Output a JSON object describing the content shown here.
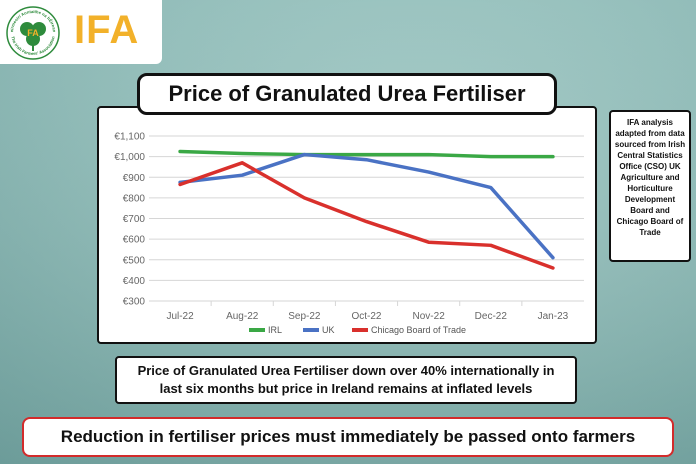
{
  "logo": {
    "text": "IFA",
    "ring_top": "Feirmeoirí Aontaithe na hÉireann",
    "ring_bottom": "The Irish Farmers' Association",
    "badge_letters": "FA"
  },
  "title": "Price of Granulated Urea Fertiliser",
  "source_note": "IFA analysis adapted from data sourced from Irish Central Statistics Office (CSO) UK Agriculture and Horticulture Development Board and Chicago Board of Trade",
  "caption": "Price of Granulated Urea Fertiliser down over 40% internationally in last six months but price in Ireland remains at inflated levels",
  "banner": "Reduction in fertiliser prices must immediately be passed onto farmers",
  "colors": {
    "ireland": "#3aa845",
    "uk": "#4a72c4",
    "chicago": "#d9302c",
    "banner_border": "#d22b2b",
    "logo": "#f2b12a"
  },
  "chart_data": {
    "type": "line",
    "title": "Price of Granulated Urea Fertiliser",
    "categories": [
      "Jul-22",
      "Aug-22",
      "Sep-22",
      "Oct-22",
      "Nov-22",
      "Dec-22",
      "Jan-23"
    ],
    "yticks": [
      "€300",
      "€400",
      "€500",
      "€600",
      "€700",
      "€800",
      "€900",
      "€1,000",
      "€1,100"
    ],
    "ylim": [
      300,
      1100
    ],
    "series": [
      {
        "name": "IRL",
        "color": "#3aa845",
        "values": [
          1025,
          1015,
          1010,
          1010,
          1010,
          1000,
          1000
        ]
      },
      {
        "name": "UK",
        "color": "#4a72c4",
        "values": [
          875,
          910,
          1010,
          985,
          925,
          850,
          510
        ]
      },
      {
        "name": "Chicago Board of Trade",
        "color": "#d9302c",
        "values": [
          865,
          970,
          800,
          685,
          585,
          570,
          460
        ]
      }
    ],
    "legend_position": "bottom",
    "grid": true
  }
}
